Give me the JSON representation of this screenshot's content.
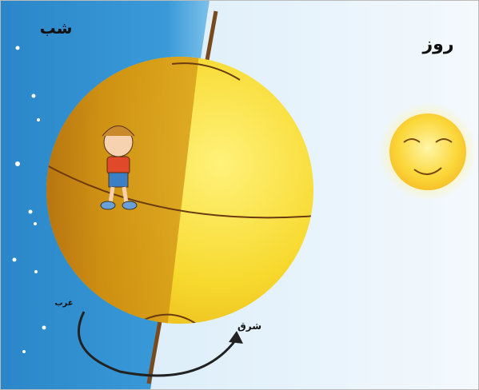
{
  "labels": {
    "night": "شب",
    "day": "روز",
    "west": "غرب",
    "east": "شرق"
  }
}
